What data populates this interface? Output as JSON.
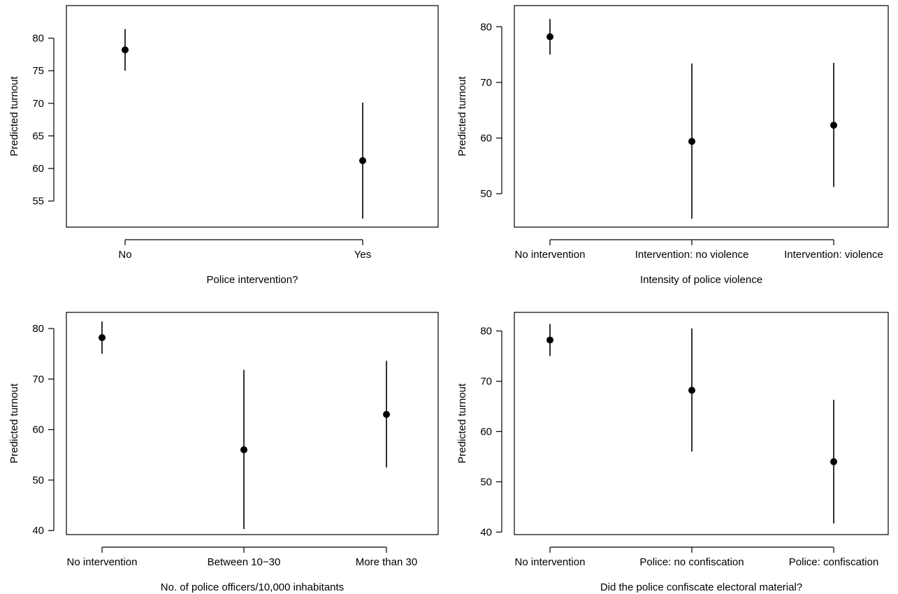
{
  "chart_data": [
    {
      "type": "scatter",
      "ylabel": "Predicted turnout",
      "xlabel": "Police intervention?",
      "categories": [
        "No",
        "Yes"
      ],
      "series": [
        {
          "values": [
            78.2,
            61.2
          ],
          "lower": [
            75.0,
            52.3
          ],
          "upper": [
            81.4,
            70.1
          ]
        }
      ],
      "ylim": [
        51,
        85
      ],
      "yticks": [
        55,
        60,
        65,
        70,
        75,
        80
      ],
      "grid": false
    },
    {
      "type": "scatter",
      "ylabel": "Predicted turnout",
      "xlabel": "Intensity of police violence",
      "categories": [
        "No intervention",
        "Intervention: no violence",
        "Intervention: violence"
      ],
      "series": [
        {
          "values": [
            78.2,
            59.4,
            62.3
          ],
          "lower": [
            75.0,
            45.5,
            51.2
          ],
          "upper": [
            81.4,
            73.4,
            73.5
          ]
        }
      ],
      "ylim": [
        44,
        83.8
      ],
      "yticks": [
        50,
        60,
        70,
        80
      ],
      "grid": false
    },
    {
      "type": "scatter",
      "ylabel": "Predicted turnout",
      "xlabel": "No. of police officers/10,000 inhabitants",
      "categories": [
        "No intervention",
        "Between 10−30",
        "More than 30"
      ],
      "series": [
        {
          "values": [
            78.2,
            56.0,
            63.0
          ],
          "lower": [
            75.0,
            40.3,
            52.5
          ],
          "upper": [
            81.4,
            71.8,
            73.6
          ]
        }
      ],
      "ylim": [
        39.2,
        83.2
      ],
      "yticks": [
        40,
        50,
        60,
        70,
        80
      ],
      "grid": false
    },
    {
      "type": "scatter",
      "ylabel": "Predicted turnout",
      "xlabel": "Did the police confiscate electoral material?",
      "categories": [
        "No intervention",
        "Police: no confiscation",
        "Police: confiscation"
      ],
      "series": [
        {
          "values": [
            78.2,
            68.2,
            54.0
          ],
          "lower": [
            75.0,
            56.0,
            41.7
          ],
          "upper": [
            81.4,
            80.5,
            66.3
          ]
        }
      ],
      "ylim": [
        39.5,
        83.7
      ],
      "yticks": [
        40,
        50,
        60,
        70,
        80
      ],
      "grid": false
    }
  ]
}
